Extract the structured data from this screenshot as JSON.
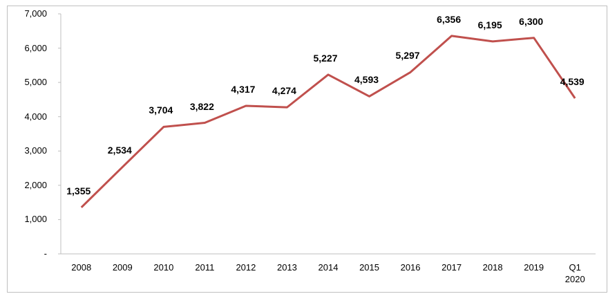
{
  "chart_data": {
    "type": "line",
    "categories": [
      "2008",
      "2009",
      "2010",
      "2011",
      "2012",
      "2013",
      "2014",
      "2015",
      "2016",
      "2017",
      "2018",
      "2019",
      "Q1\n2020"
    ],
    "series": [
      {
        "color": "#c0504d",
        "values": [
          1355,
          2534,
          3704,
          3822,
          4317,
          4274,
          5227,
          4593,
          5297,
          6356,
          6195,
          6300,
          4539
        ],
        "value_labels": [
          "1,355",
          "2,534",
          "3,704",
          "3,822",
          "4,317",
          "4,274",
          "5,227",
          "4,593",
          "5,297",
          "6,356",
          "6,195",
          "6,300",
          "4,539"
        ]
      }
    ],
    "ylim": [
      0,
      7000
    ],
    "yticks": [
      {
        "value": 0,
        "label": "-"
      },
      {
        "value": 1000,
        "label": "1,000"
      },
      {
        "value": 2000,
        "label": "2,000"
      },
      {
        "value": 3000,
        "label": "3,000"
      },
      {
        "value": 4000,
        "label": "4,000"
      },
      {
        "value": 5000,
        "label": "5,000"
      },
      {
        "value": 6000,
        "label": "6,000"
      },
      {
        "value": 7000,
        "label": "7,000"
      }
    ],
    "grid": false
  }
}
